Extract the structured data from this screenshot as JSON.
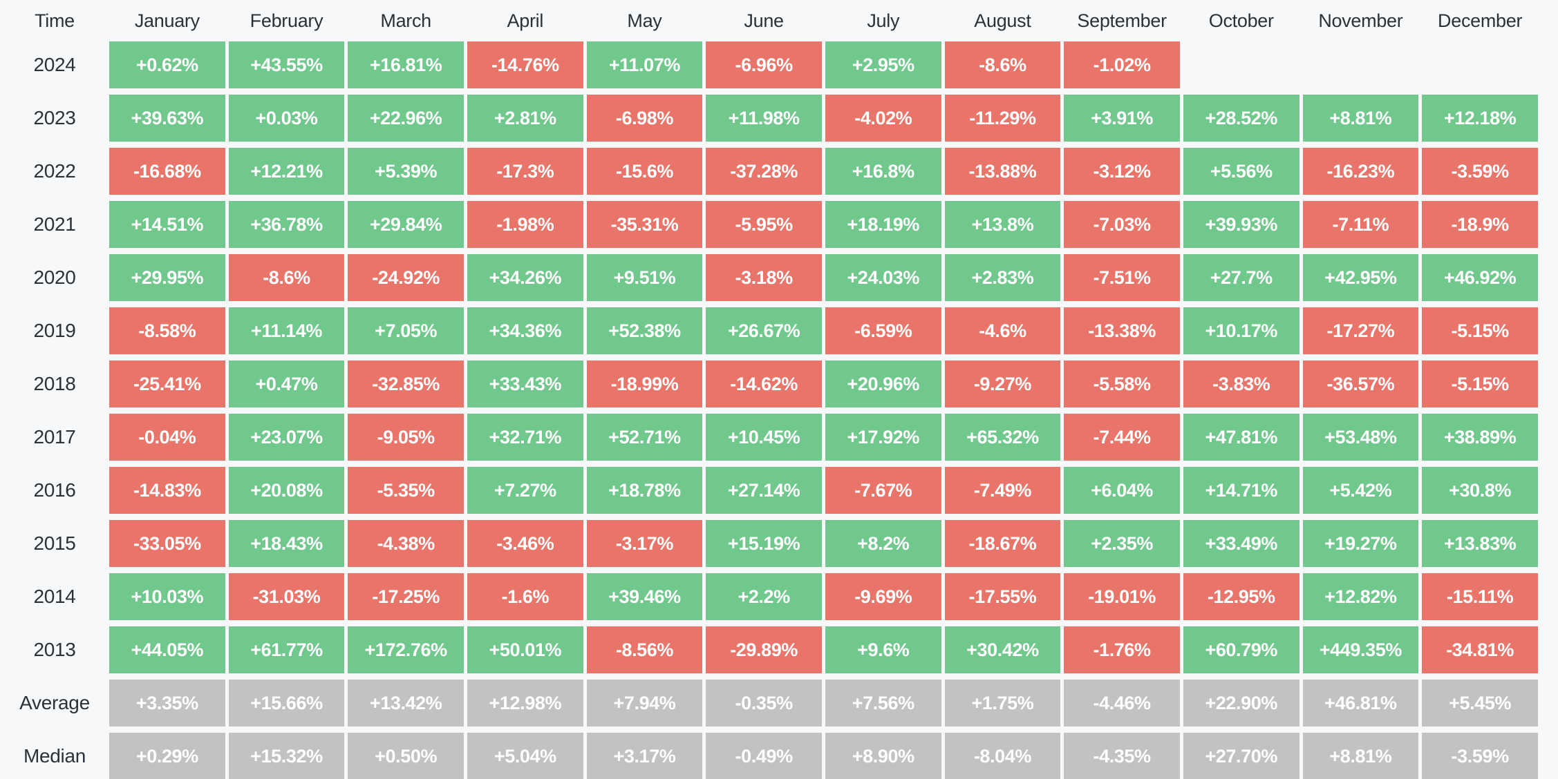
{
  "table": {
    "corner_label": "Time",
    "months": [
      "January",
      "February",
      "March",
      "April",
      "May",
      "June",
      "July",
      "August",
      "September",
      "October",
      "November",
      "December"
    ],
    "rows": [
      {
        "label": "2024",
        "type": "year",
        "values": [
          "+0.62%",
          "+43.55%",
          "+16.81%",
          "-14.76%",
          "+11.07%",
          "-6.96%",
          "+2.95%",
          "-8.6%",
          "-1.02%",
          "",
          "",
          ""
        ]
      },
      {
        "label": "2023",
        "type": "year",
        "values": [
          "+39.63%",
          "+0.03%",
          "+22.96%",
          "+2.81%",
          "-6.98%",
          "+11.98%",
          "-4.02%",
          "-11.29%",
          "+3.91%",
          "+28.52%",
          "+8.81%",
          "+12.18%"
        ]
      },
      {
        "label": "2022",
        "type": "year",
        "values": [
          "-16.68%",
          "+12.21%",
          "+5.39%",
          "-17.3%",
          "-15.6%",
          "-37.28%",
          "+16.8%",
          "-13.88%",
          "-3.12%",
          "+5.56%",
          "-16.23%",
          "-3.59%"
        ]
      },
      {
        "label": "2021",
        "type": "year",
        "values": [
          "+14.51%",
          "+36.78%",
          "+29.84%",
          "-1.98%",
          "-35.31%",
          "-5.95%",
          "+18.19%",
          "+13.8%",
          "-7.03%",
          "+39.93%",
          "-7.11%",
          "-18.9%"
        ]
      },
      {
        "label": "2020",
        "type": "year",
        "values": [
          "+29.95%",
          "-8.6%",
          "-24.92%",
          "+34.26%",
          "+9.51%",
          "-3.18%",
          "+24.03%",
          "+2.83%",
          "-7.51%",
          "+27.7%",
          "+42.95%",
          "+46.92%"
        ]
      },
      {
        "label": "2019",
        "type": "year",
        "values": [
          "-8.58%",
          "+11.14%",
          "+7.05%",
          "+34.36%",
          "+52.38%",
          "+26.67%",
          "-6.59%",
          "-4.6%",
          "-13.38%",
          "+10.17%",
          "-17.27%",
          "-5.15%"
        ]
      },
      {
        "label": "2018",
        "type": "year",
        "values": [
          "-25.41%",
          "+0.47%",
          "-32.85%",
          "+33.43%",
          "-18.99%",
          "-14.62%",
          "+20.96%",
          "-9.27%",
          "-5.58%",
          "-3.83%",
          "-36.57%",
          "-5.15%"
        ]
      },
      {
        "label": "2017",
        "type": "year",
        "values": [
          "-0.04%",
          "+23.07%",
          "-9.05%",
          "+32.71%",
          "+52.71%",
          "+10.45%",
          "+17.92%",
          "+65.32%",
          "-7.44%",
          "+47.81%",
          "+53.48%",
          "+38.89%"
        ]
      },
      {
        "label": "2016",
        "type": "year",
        "values": [
          "-14.83%",
          "+20.08%",
          "-5.35%",
          "+7.27%",
          "+18.78%",
          "+27.14%",
          "-7.67%",
          "-7.49%",
          "+6.04%",
          "+14.71%",
          "+5.42%",
          "+30.8%"
        ]
      },
      {
        "label": "2015",
        "type": "year",
        "values": [
          "-33.05%",
          "+18.43%",
          "-4.38%",
          "-3.46%",
          "-3.17%",
          "+15.19%",
          "+8.2%",
          "-18.67%",
          "+2.35%",
          "+33.49%",
          "+19.27%",
          "+13.83%"
        ]
      },
      {
        "label": "2014",
        "type": "year",
        "values": [
          "+10.03%",
          "-31.03%",
          "-17.25%",
          "-1.6%",
          "+39.46%",
          "+2.2%",
          "-9.69%",
          "-17.55%",
          "-19.01%",
          "-12.95%",
          "+12.82%",
          "-15.11%"
        ]
      },
      {
        "label": "2013",
        "type": "year",
        "values": [
          "+44.05%",
          "+61.77%",
          "+172.76%",
          "+50.01%",
          "-8.56%",
          "-29.89%",
          "+9.6%",
          "+30.42%",
          "-1.76%",
          "+60.79%",
          "+449.35%",
          "-34.81%"
        ]
      },
      {
        "label": "Average",
        "type": "summary",
        "values": [
          "+3.35%",
          "+15.66%",
          "+13.42%",
          "+12.98%",
          "+7.94%",
          "-0.35%",
          "+7.56%",
          "+1.75%",
          "-4.46%",
          "+22.90%",
          "+46.81%",
          "+5.45%"
        ]
      },
      {
        "label": "Median",
        "type": "summary",
        "values": [
          "+0.29%",
          "+15.32%",
          "+0.50%",
          "+5.04%",
          "+3.17%",
          "-0.49%",
          "+8.90%",
          "-8.04%",
          "-4.35%",
          "+27.70%",
          "+8.81%",
          "-3.59%"
        ]
      }
    ]
  },
  "colors": {
    "background": "#f7f8f9",
    "positive": "#70c88d",
    "negative": "#e9756a",
    "summary": "#c2c2c2",
    "label_text": "#2b3137",
    "cell_text": "#ffffff"
  },
  "chart_data": {
    "type": "heatmap",
    "title": "Monthly returns heatmap by year (%)",
    "x": [
      "January",
      "February",
      "March",
      "April",
      "May",
      "June",
      "July",
      "August",
      "September",
      "October",
      "November",
      "December"
    ],
    "y": [
      "2024",
      "2023",
      "2022",
      "2021",
      "2020",
      "2019",
      "2018",
      "2017",
      "2016",
      "2015",
      "2014",
      "2013",
      "Average",
      "Median"
    ],
    "matrix": [
      [
        0.62,
        43.55,
        16.81,
        -14.76,
        11.07,
        -6.96,
        2.95,
        -8.6,
        -1.02,
        null,
        null,
        null
      ],
      [
        39.63,
        0.03,
        22.96,
        2.81,
        -6.98,
        11.98,
        -4.02,
        -11.29,
        3.91,
        28.52,
        8.81,
        12.18
      ],
      [
        -16.68,
        12.21,
        5.39,
        -17.3,
        -15.6,
        -37.28,
        16.8,
        -13.88,
        -3.12,
        5.56,
        -16.23,
        -3.59
      ],
      [
        14.51,
        36.78,
        29.84,
        -1.98,
        -35.31,
        -5.95,
        18.19,
        13.8,
        -7.03,
        39.93,
        -7.11,
        -18.9
      ],
      [
        29.95,
        -8.6,
        -24.92,
        34.26,
        9.51,
        -3.18,
        24.03,
        2.83,
        -7.51,
        27.7,
        42.95,
        46.92
      ],
      [
        -8.58,
        11.14,
        7.05,
        34.36,
        52.38,
        26.67,
        -6.59,
        -4.6,
        -13.38,
        10.17,
        -17.27,
        -5.15
      ],
      [
        -25.41,
        0.47,
        -32.85,
        33.43,
        -18.99,
        -14.62,
        20.96,
        -9.27,
        -5.58,
        -3.83,
        -36.57,
        -5.15
      ],
      [
        -0.04,
        23.07,
        -9.05,
        32.71,
        52.71,
        10.45,
        17.92,
        65.32,
        -7.44,
        47.81,
        53.48,
        38.89
      ],
      [
        -14.83,
        20.08,
        -5.35,
        7.27,
        18.78,
        27.14,
        -7.67,
        -7.49,
        6.04,
        14.71,
        5.42,
        30.8
      ],
      [
        -33.05,
        18.43,
        -4.38,
        -3.46,
        -3.17,
        15.19,
        8.2,
        -18.67,
        2.35,
        33.49,
        19.27,
        13.83
      ],
      [
        10.03,
        -31.03,
        -17.25,
        -1.6,
        39.46,
        2.2,
        -9.69,
        -17.55,
        -19.01,
        -12.95,
        12.82,
        -15.11
      ],
      [
        44.05,
        61.77,
        172.76,
        50.01,
        -8.56,
        -29.89,
        9.6,
        30.42,
        -1.76,
        60.79,
        449.35,
        -34.81
      ],
      [
        3.35,
        15.66,
        13.42,
        12.98,
        7.94,
        -0.35,
        7.56,
        1.75,
        -4.46,
        22.9,
        46.81,
        5.45
      ],
      [
        0.29,
        15.32,
        0.5,
        5.04,
        3.17,
        -0.49,
        8.9,
        -8.04,
        -4.35,
        27.7,
        8.81,
        -3.59
      ]
    ],
    "color_rule": "green if value > 0, red if value < 0, gray for Average/Median rows, blank if no data",
    "legend_position": "none",
    "grid": false
  }
}
